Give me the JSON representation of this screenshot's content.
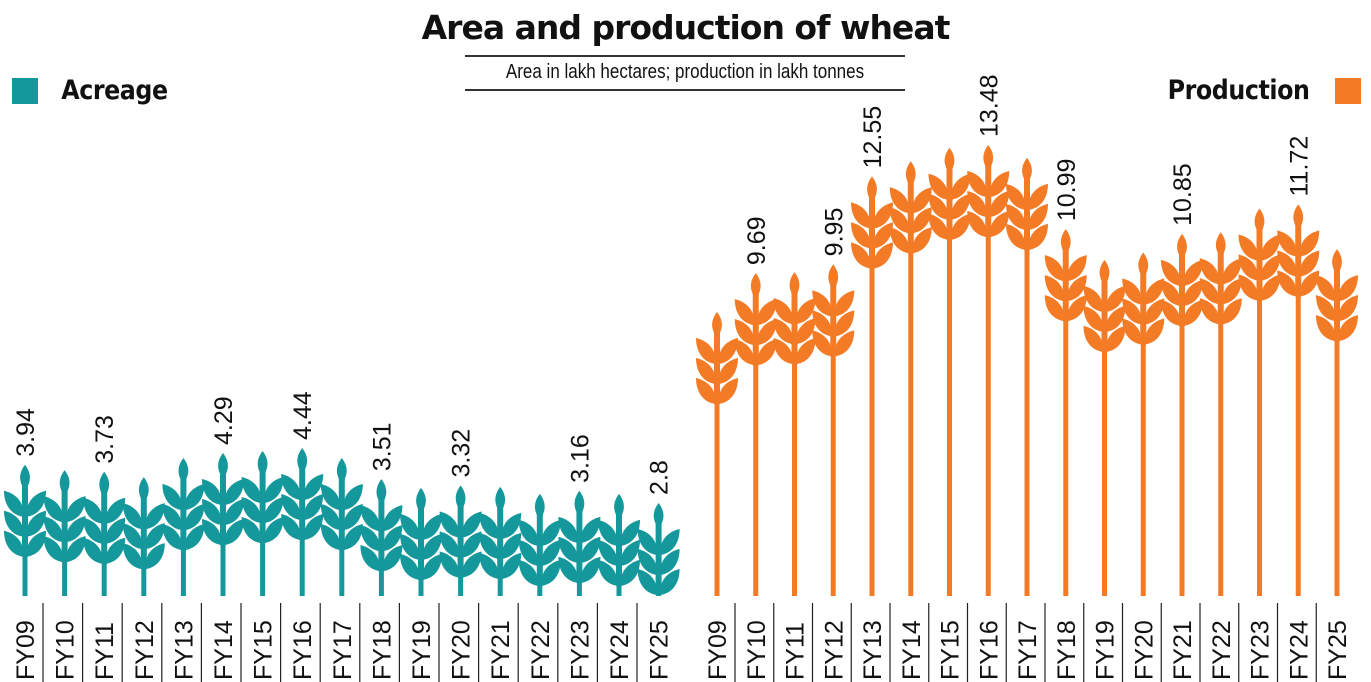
{
  "chart_data": {
    "type": "bar",
    "title": "Area and production of wheat",
    "subtitle": "Area in lakh hectares; production in lakh tonnes",
    "categories": [
      "FY09",
      "FY10",
      "FY11",
      "FY12",
      "FY13",
      "FY14",
      "FY15",
      "FY16",
      "FY17",
      "FY18",
      "FY19",
      "FY20",
      "FY21",
      "FY22",
      "FY23",
      "FY24",
      "FY25"
    ],
    "series": [
      {
        "name": "Acreage",
        "color": "#15989b",
        "values": [
          3.94,
          3.78,
          3.73,
          3.57,
          4.14,
          4.29,
          4.35,
          4.44,
          4.14,
          3.51,
          3.25,
          3.32,
          3.28,
          3.07,
          3.16,
          3.07,
          2.8
        ],
        "labeled": [
          true,
          false,
          true,
          false,
          false,
          true,
          false,
          true,
          false,
          true,
          false,
          true,
          false,
          false,
          true,
          false,
          true
        ]
      },
      {
        "name": "Production",
        "color": "#f47b26",
        "values": [
          8.54,
          9.69,
          9.72,
          9.95,
          12.55,
          13.0,
          13.4,
          13.48,
          13.1,
          10.99,
          10.08,
          10.3,
          10.85,
          10.9,
          11.6,
          11.72,
          10.4
        ],
        "labeled": [
          false,
          true,
          false,
          true,
          true,
          false,
          false,
          true,
          false,
          true,
          false,
          false,
          true,
          false,
          false,
          true,
          false
        ]
      }
    ],
    "value_labels": {
      "Acreage": [
        "3.94",
        "",
        "3.73",
        "",
        "",
        "4.29",
        "",
        "4.44",
        "",
        "3.51",
        "",
        "3.32",
        "",
        "",
        "3.16",
        "",
        "2.8"
      ],
      "Production": [
        "",
        "9.69",
        "",
        "9.95",
        "12.55",
        "",
        "",
        "13.48",
        "",
        "10.99",
        "",
        "",
        "10.85",
        "",
        "",
        "11.72",
        ""
      ]
    },
    "xlabel": "",
    "ylabel": "",
    "legend": [
      "Acreage (top-left)",
      "Production (top-right)"
    ],
    "grid": false,
    "mark": "wheat-stalk pictogram"
  },
  "legend": {
    "acreage_label": "Acreage",
    "production_label": "Production"
  }
}
